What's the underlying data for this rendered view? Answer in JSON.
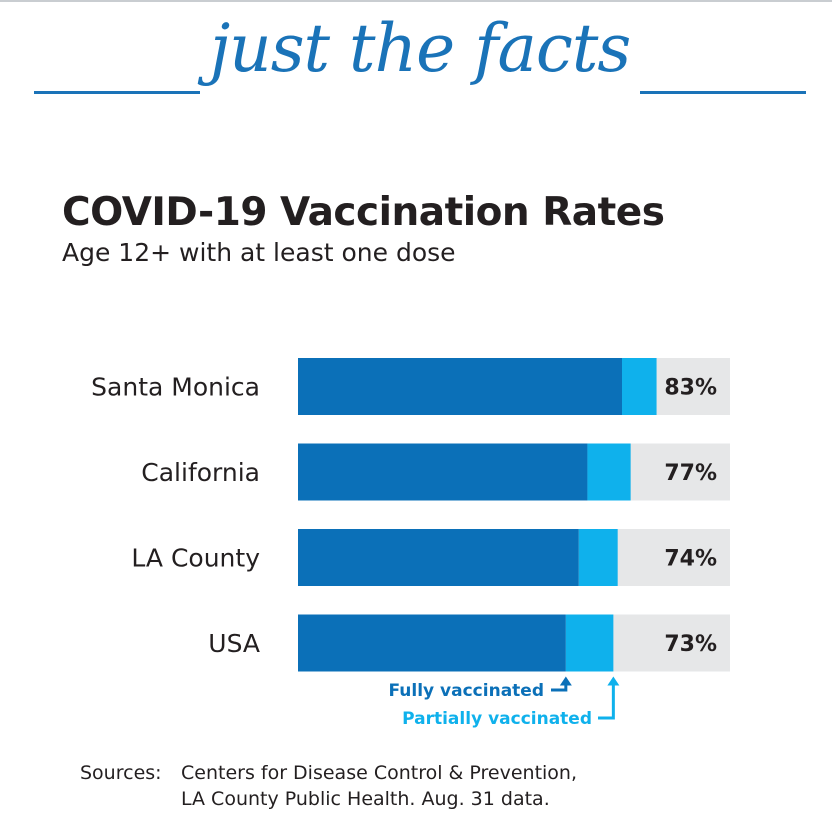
{
  "header": {
    "title": "just the facts"
  },
  "chart_data": {
    "type": "bar",
    "orientation": "horizontal",
    "stacked": true,
    "title": "COVID-19 Vaccination Rates",
    "subtitle": "Age 12+ with at least one dose",
    "categories": [
      "Santa Monica",
      "California",
      "LA County",
      "USA"
    ],
    "series": [
      {
        "name": "Fully vaccinated",
        "values": [
          75,
          67,
          65,
          62
        ]
      },
      {
        "name": "Partially vaccinated",
        "values": [
          8,
          10,
          9,
          11
        ]
      }
    ],
    "totals": [
      83,
      77,
      74,
      73
    ],
    "data_labels": [
      "83%",
      "77%",
      "74%",
      "73%"
    ],
    "xlim": [
      0,
      100
    ],
    "legend": {
      "fully_label": "Fully vaccinated",
      "partially_label": "Partially vaccinated",
      "placement": "below"
    }
  },
  "colors": {
    "accent": "#1a73b8",
    "fully": "#0b70b8",
    "partially": "#0fb1ec",
    "track": "#e6e7e8",
    "text": "#231f20"
  },
  "sources": {
    "label": "Sources:",
    "line1": "Centers for Disease Control & Prevention,",
    "line2": "LA County Public Health. Aug. 31 data."
  }
}
